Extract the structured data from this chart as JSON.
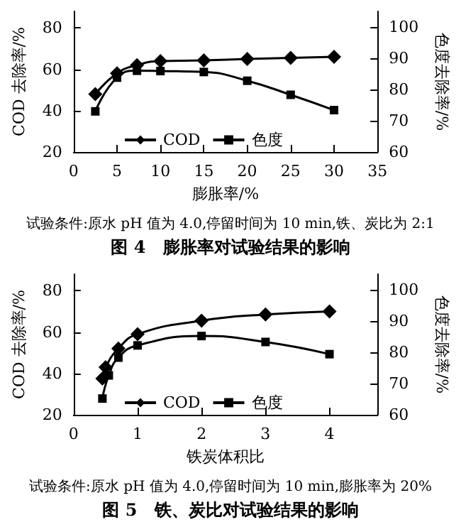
{
  "chart_data": [
    {
      "type": "line",
      "title": "图 4　膨胀率对试验结果的影响",
      "annotations": [
        "试验条件:原水 pH 值为 4.0,停留时间为 10 min,铁、炭比为 2:1"
      ],
      "xlabel": "膨胀率/%",
      "ylabel": "COD 去除率/%",
      "y2label": "色度去除率/%",
      "xlim": [
        0,
        35
      ],
      "xticks": [
        0,
        5,
        10,
        15,
        20,
        25,
        30,
        35
      ],
      "ylim": [
        20,
        88
      ],
      "yticks": [
        20,
        40,
        60,
        80
      ],
      "y2lim": [
        60,
        105
      ],
      "y2ticks": [
        60,
        70,
        80,
        90,
        100
      ],
      "legend": "left",
      "grid": false,
      "series": [
        {
          "name": "COD",
          "color": "#000000",
          "marker": "diamond",
          "x": [
            2.5,
            5,
            7.3,
            10,
            15,
            20,
            25,
            30
          ],
          "values": [
            48,
            58,
            62,
            64,
            64.3,
            65,
            65.5,
            66
          ]
        },
        {
          "name": "色度",
          "color": "#000000",
          "marker": "square",
          "axis": "y2",
          "x": [
            2.5,
            5,
            7.3,
            10,
            15,
            20,
            25,
            30
          ],
          "values": [
            73,
            83.8,
            86,
            85.9,
            85.6,
            82.8,
            78.3,
            73.4
          ]
        }
      ]
    },
    {
      "type": "line",
      "title": "图 5　铁、炭比对试验结果的影响",
      "annotations": [
        "试验条件:原水 pH 值为 4.0,停留时间为 10 min,膨胀率为 20%"
      ],
      "xlabel": "铁炭体积比",
      "ylabel": "COD 去除率/%",
      "y2label": "色度去除率/%",
      "xlim": [
        0,
        4.75
      ],
      "xticks": [
        0,
        1,
        2,
        3,
        4
      ],
      "ylim": [
        20,
        88
      ],
      "yticks": [
        20,
        40,
        60,
        80
      ],
      "y2lim": [
        60,
        105
      ],
      "y2ticks": [
        60,
        70,
        80,
        90,
        100
      ],
      "legend": "left",
      "grid": false,
      "series": [
        {
          "name": "COD",
          "color": "#000000",
          "marker": "diamond",
          "x": [
            0.45,
            0.5,
            0.7,
            1,
            2,
            3,
            4
          ],
          "values": [
            37.5,
            43,
            52,
            59,
            65.5,
            68.5,
            70
          ]
        },
        {
          "name": "色度",
          "color": "#000000",
          "marker": "square",
          "axis": "y2",
          "x": [
            0.45,
            0.55,
            0.7,
            1,
            2,
            3,
            4
          ],
          "values": [
            65.2,
            72.6,
            78.3,
            82.2,
            85.2,
            83.3,
            79.4
          ]
        }
      ]
    }
  ]
}
